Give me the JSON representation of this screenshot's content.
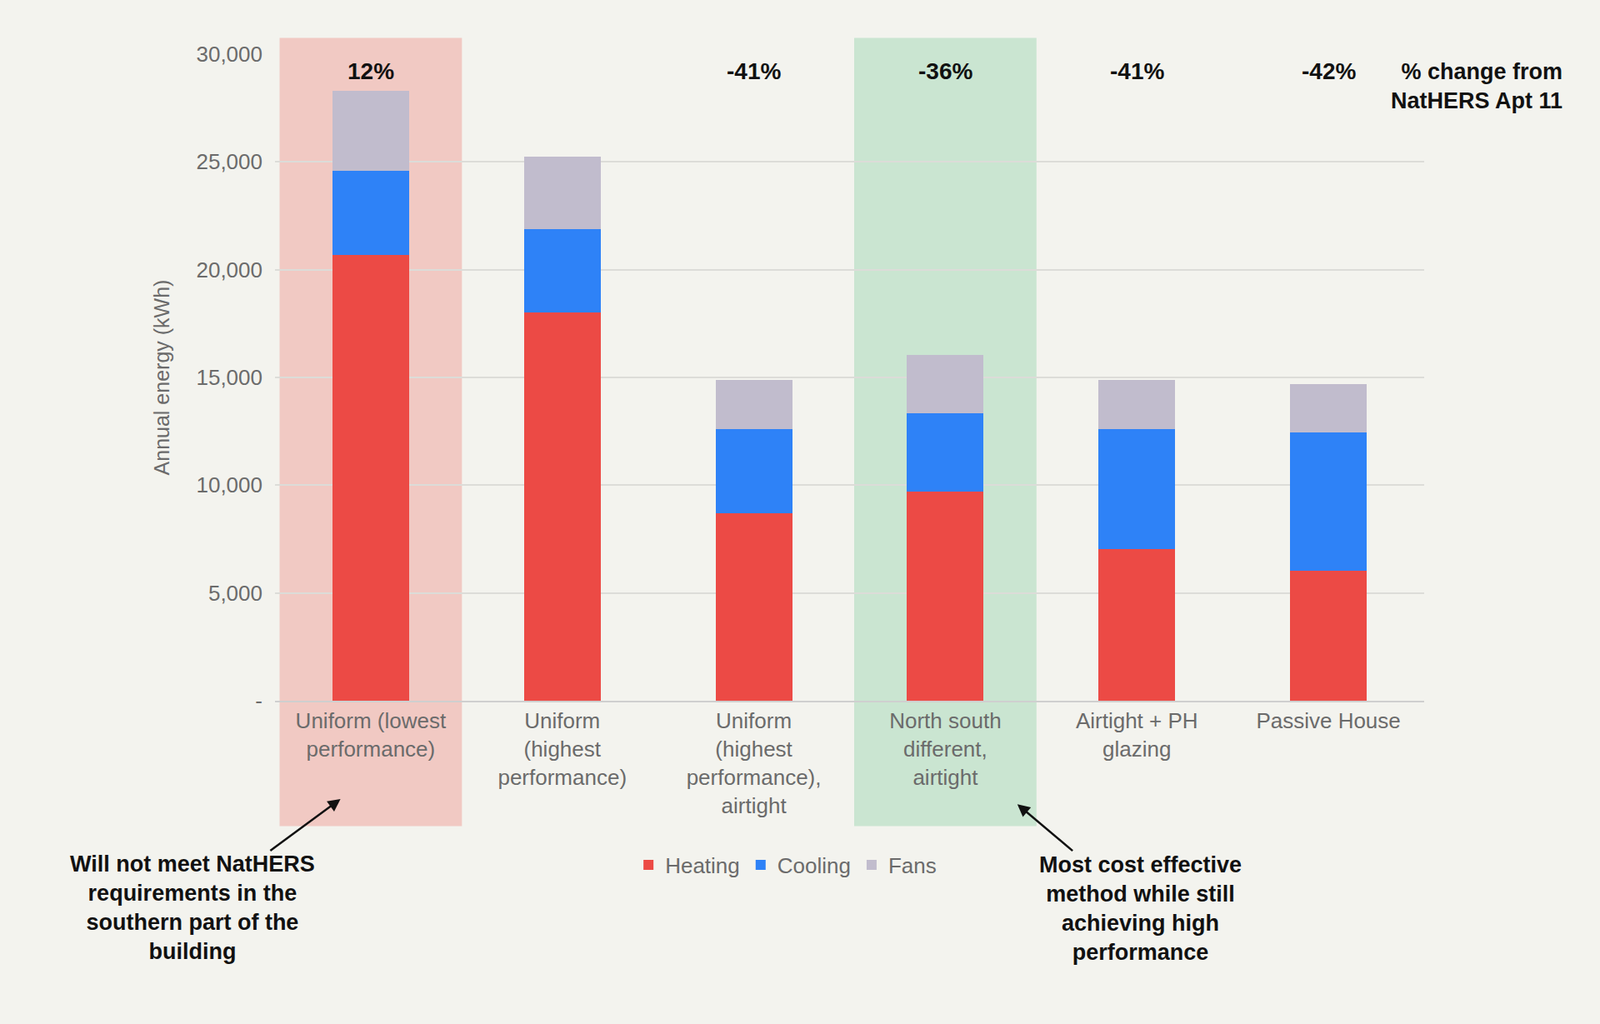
{
  "chart_data": {
    "type": "bar",
    "stacked": true,
    "y_label": "Annual energy (kWh)",
    "categories": [
      "Uniform (lowest performance)",
      "Uniform (highest performance)",
      "Uniform (highest performance), airtight",
      "North south different, airtight",
      "Airtight + PH glazing",
      "Passive House"
    ],
    "series": [
      {
        "name": "Heating",
        "color": "#ec4a45",
        "values": [
          20700,
          18000,
          8700,
          9700,
          7050,
          6050
        ]
      },
      {
        "name": "Cooling",
        "color": "#2e82f7",
        "values": [
          3900,
          3900,
          3900,
          3650,
          5550,
          6400
        ]
      },
      {
        "name": "Fans",
        "color": "#c1bccd",
        "values": [
          3700,
          3350,
          2300,
          2700,
          2300,
          2250
        ]
      }
    ],
    "ylim": [
      0,
      30000
    ],
    "yticks": [
      {
        "value": 0,
        "label": "-"
      },
      {
        "value": 5000,
        "label": "5,000"
      },
      {
        "value": 10000,
        "label": "10,000"
      },
      {
        "value": 15000,
        "label": "15,000"
      },
      {
        "value": 20000,
        "label": "20,000"
      },
      {
        "value": 25000,
        "label": "25,000"
      },
      {
        "value": 30000,
        "label": "30,000"
      }
    ],
    "grid": true,
    "legend": "bottom",
    "change_title": "% change from NatHERS Apt 11",
    "change_labels": [
      "12%",
      null,
      "-41%",
      "-36%",
      "-41%",
      "-42%"
    ],
    "callouts": [
      {
        "category": "Uniform (lowest performance)",
        "text": "Will not meet NatHERS requirements in the southern part of the building"
      },
      {
        "category": "North south different, airtight",
        "text": "Most cost effective method while still achieving high performance"
      }
    ]
  }
}
